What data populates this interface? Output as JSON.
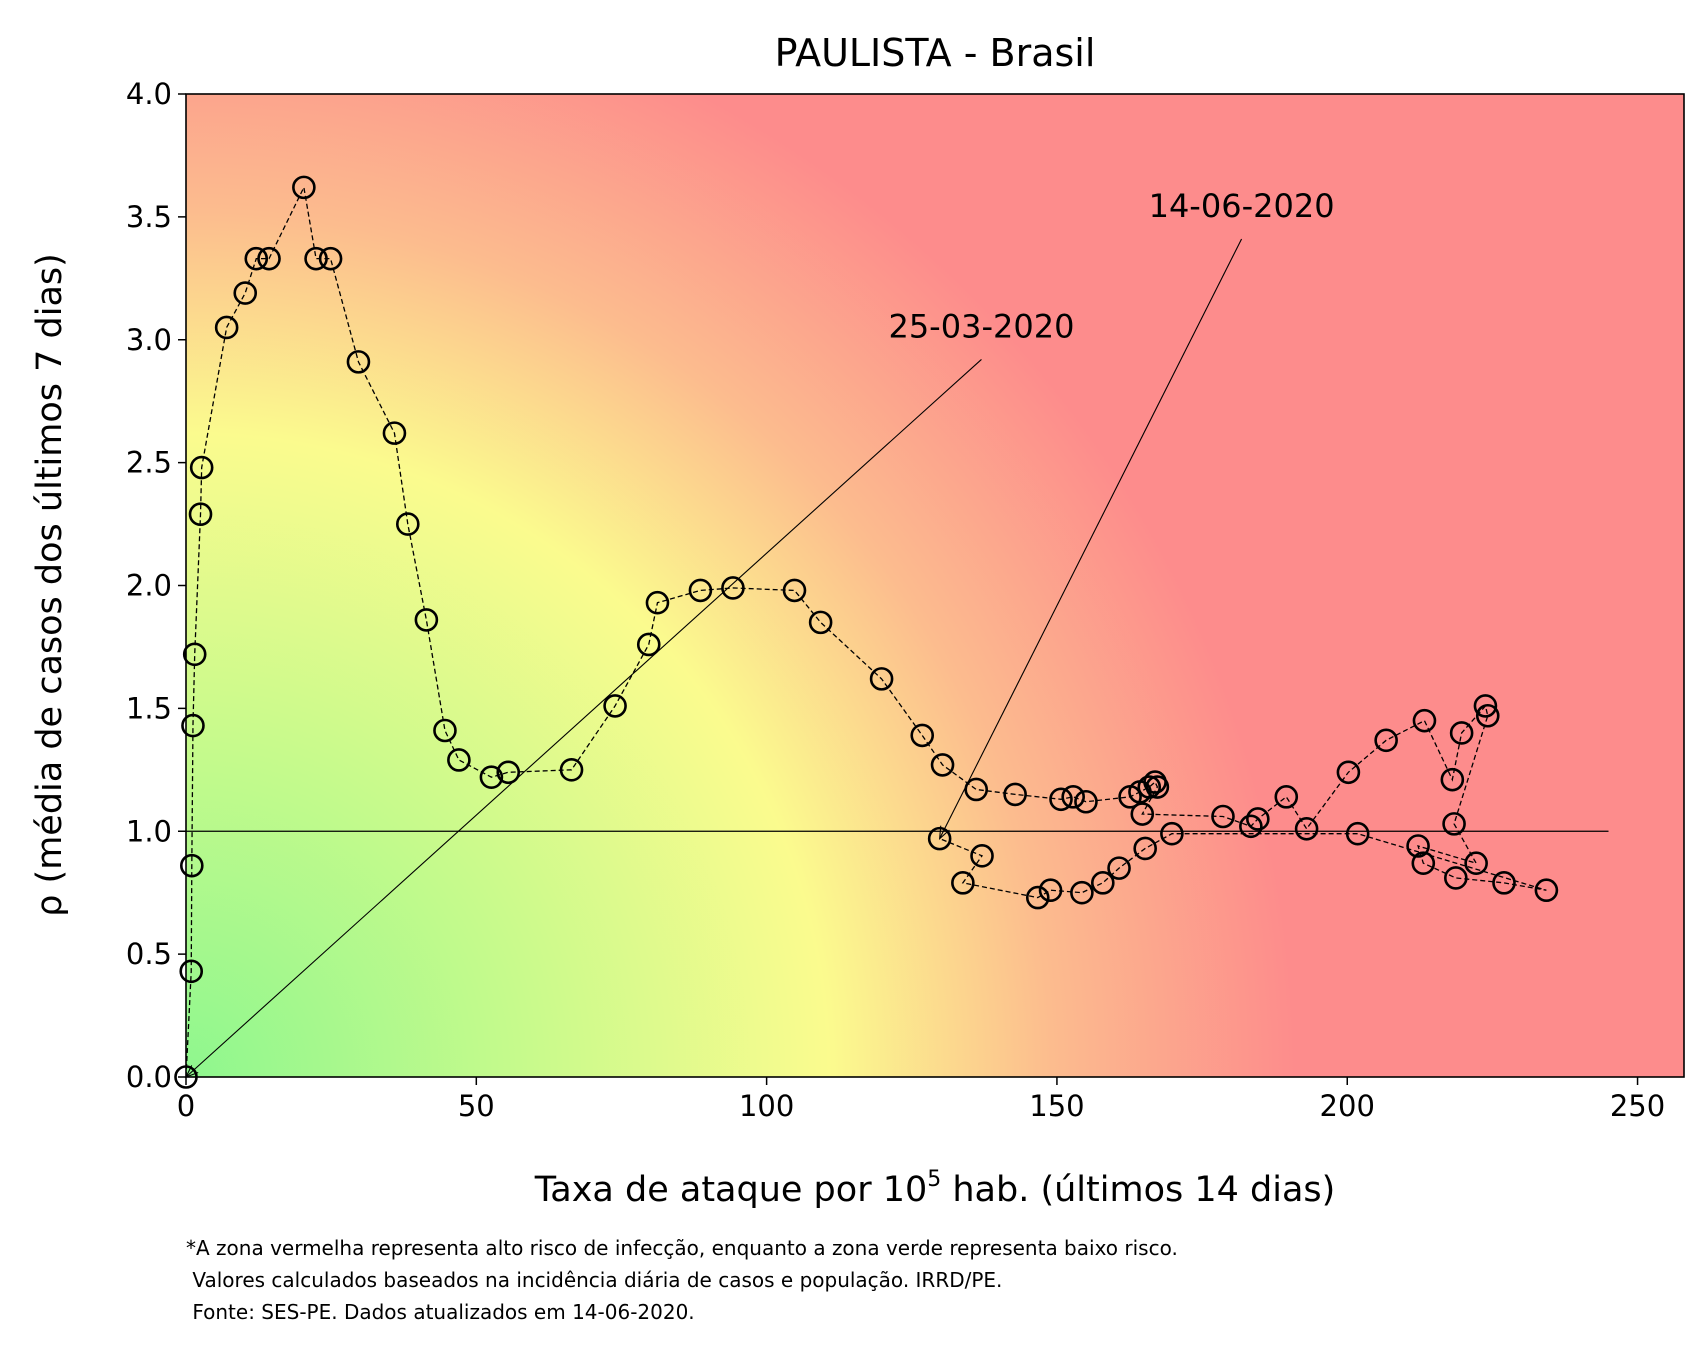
{
  "chart_data": {
    "type": "scatter",
    "title": "PAULISTA - Brasil",
    "xlabel_prefix": "Taxa de ataque por 10",
    "xlabel_sup": "5",
    "xlabel_suffix": " hab. (últimos 14 dias)",
    "ylabel": "ρ (média de casos dos últimos 7 dias)",
    "xlim": [
      0,
      258
    ],
    "ylim": [
      0,
      4.0
    ],
    "x_ticks": [
      0,
      50,
      100,
      150,
      200,
      250
    ],
    "x_tick_labels": [
      "0",
      "50",
      "100",
      "150",
      "200",
      "250"
    ],
    "y_ticks": [
      0.0,
      0.5,
      1.0,
      1.5,
      2.0,
      2.5,
      3.0,
      3.5,
      4.0
    ],
    "y_tick_labels": [
      "0.0",
      "0.5",
      "1.0",
      "1.5",
      "2.0",
      "2.5",
      "3.0",
      "3.5",
      "4.0"
    ],
    "grid": false,
    "reference_line": {
      "y": 1.0,
      "x_range": [
        0,
        245
      ]
    },
    "background": "risk gradient: green (low) to yellow to red (high)",
    "colors": {
      "green": "#8ef78e",
      "yellow": "#fbfb8e",
      "orange": "#fcbc8e",
      "red": "#fd8c8c",
      "marker": "#000000"
    },
    "series": [
      {
        "x": [
          0.0,
          0.9,
          1.0,
          1.2,
          1.5,
          2.5,
          2.7,
          7.0,
          10.2,
          12.1,
          14.3,
          20.3,
          22.4,
          24.9,
          29.7,
          35.9,
          38.2,
          41.4,
          44.6,
          47.0,
          52.6,
          55.5,
          66.4,
          73.9,
          79.7,
          81.2,
          88.6,
          94.2,
          104.8,
          109.3,
          119.8,
          126.8,
          130.3,
          136.1,
          142.8,
          150.7,
          152.8,
          155.0,
          162.6,
          164.3,
          165.9,
          166.9,
          167.3,
          164.7,
          178.6,
          183.4,
          184.6,
          189.5,
          193.0,
          200.2,
          206.7,
          213.3,
          218.1,
          219.7,
          223.8,
          224.2,
          218.4,
          222.2,
          212.2,
          213.1,
          218.7,
          227.0,
          234.3,
          201.8,
          169.8,
          165.2,
          160.7,
          157.9,
          154.3,
          148.9,
          146.7,
          133.8,
          137.1,
          129.8
        ],
        "y": [
          0.0,
          0.43,
          0.86,
          1.43,
          1.72,
          2.29,
          2.48,
          3.05,
          3.19,
          3.33,
          3.33,
          3.62,
          3.33,
          3.33,
          2.91,
          2.62,
          2.25,
          1.86,
          1.41,
          1.29,
          1.22,
          1.24,
          1.25,
          1.51,
          1.76,
          1.93,
          1.98,
          1.99,
          1.98,
          1.85,
          1.62,
          1.39,
          1.27,
          1.17,
          1.15,
          1.13,
          1.14,
          1.12,
          1.14,
          1.16,
          1.18,
          1.2,
          1.18,
          1.07,
          1.06,
          1.02,
          1.05,
          1.14,
          1.01,
          1.24,
          1.37,
          1.45,
          1.21,
          1.4,
          1.51,
          1.47,
          1.03,
          0.87,
          0.94,
          0.87,
          0.81,
          0.79,
          0.76,
          0.99,
          0.99,
          0.93,
          0.85,
          0.79,
          0.75,
          0.76,
          0.73,
          0.79,
          0.9,
          0.97
        ]
      }
    ],
    "annotations": [
      {
        "text": "25-03-2020",
        "point": [
          0.0,
          0.0
        ],
        "text_pos": [
          137,
          2.92
        ]
      },
      {
        "text": "14-06-2020",
        "point": [
          129.8,
          0.97
        ],
        "text_pos": [
          181.8,
          3.41
        ]
      }
    ]
  },
  "footnote": {
    "line1": "*A zona vermelha representa alto risco de infecção, enquanto a zona verde representa baixo risco.",
    "line2": " Valores calculados baseados na incidência diária de casos e população. IRRD/PE.",
    "line3": " Fonte: SES-PE. Dados atualizados em 14-06-2020."
  }
}
